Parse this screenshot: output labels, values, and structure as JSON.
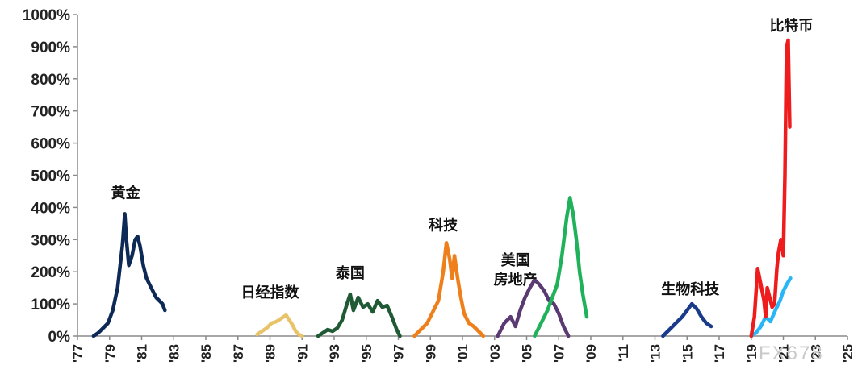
{
  "chart_data": {
    "type": "line",
    "title": "",
    "xlabel": "",
    "ylabel": "",
    "xlim": [
      1977,
      2025
    ],
    "ylim": [
      0,
      1000
    ],
    "grid": false,
    "y_ticks": [
      "0%",
      "100%",
      "200%",
      "300%",
      "400%",
      "500%",
      "600%",
      "700%",
      "800%",
      "900%",
      "1000%"
    ],
    "x_ticks": [
      "'77",
      "'79",
      "'81",
      "'83",
      "'85",
      "'87",
      "'89",
      "'91",
      "'93",
      "'95",
      "'97",
      "'99",
      "'01",
      "'03",
      "'05",
      "'07",
      "'09",
      "'11",
      "'13",
      "'15",
      "'17",
      "'19",
      "'21",
      "'23",
      "'25"
    ],
    "series": [
      {
        "name": "黄金",
        "color": "#0d2a57",
        "label_at": [
          1980.0,
          430
        ],
        "label_lines": [
          "黄金"
        ],
        "x": [
          1978.0,
          1978.3,
          1978.6,
          1978.9,
          1979.2,
          1979.5,
          1979.8,
          1979.95,
          1980.05,
          1980.2,
          1980.4,
          1980.6,
          1980.75,
          1980.9,
          1981.1,
          1981.3,
          1981.5,
          1981.7,
          1981.9,
          1982.1,
          1982.3,
          1982.45
        ],
        "y": [
          0,
          10,
          25,
          40,
          80,
          150,
          280,
          380,
          300,
          220,
          250,
          300,
          310,
          280,
          220,
          180,
          160,
          140,
          120,
          110,
          100,
          80
        ]
      },
      {
        "name": "日经指数",
        "color": "#e8c36a",
        "label_at": [
          1989.0,
          120
        ],
        "label_lines": [
          "日经指数"
        ],
        "x": [
          1988.2,
          1988.5,
          1988.8,
          1989.1,
          1989.4,
          1989.7,
          1990.0,
          1990.2,
          1990.4,
          1990.6,
          1990.8,
          1991.0
        ],
        "y": [
          5,
          15,
          25,
          40,
          45,
          55,
          65,
          50,
          35,
          15,
          5,
          0
        ]
      },
      {
        "name": "泰国",
        "color": "#1f5a35",
        "label_at": [
          1994.0,
          180
        ],
        "label_lines": [
          "泰国"
        ],
        "x": [
          1992.0,
          1992.3,
          1992.6,
          1992.9,
          1993.2,
          1993.5,
          1993.8,
          1994.0,
          1994.2,
          1994.5,
          1994.8,
          1995.1,
          1995.4,
          1995.7,
          1996.0,
          1996.3,
          1996.6,
          1996.9,
          1997.1
        ],
        "y": [
          0,
          10,
          20,
          15,
          25,
          50,
          100,
          130,
          80,
          120,
          90,
          100,
          75,
          110,
          90,
          95,
          60,
          20,
          0
        ]
      },
      {
        "name": "科技",
        "color": "#ef7f1a",
        "label_at": [
          1999.8,
          330
        ],
        "label_lines": [
          "科技"
        ],
        "x": [
          1998.0,
          1998.4,
          1998.8,
          1999.2,
          1999.5,
          1999.8,
          2000.0,
          2000.2,
          2000.35,
          2000.5,
          2000.7,
          2000.9,
          2001.1,
          2001.4,
          2001.7,
          2002.0,
          2002.3
        ],
        "y": [
          0,
          20,
          40,
          80,
          110,
          200,
          290,
          240,
          180,
          250,
          180,
          120,
          70,
          40,
          30,
          15,
          0
        ]
      },
      {
        "name": "美国房地产",
        "color": "#5b3a72",
        "label_at": [
          2004.3,
          220
        ],
        "label_lines": [
          "美国",
          "房地产"
        ],
        "x": [
          2003.2,
          2003.6,
          2004.0,
          2004.3,
          2004.6,
          2004.9,
          2005.2,
          2005.5,
          2005.8,
          2006.1,
          2006.4,
          2006.7,
          2007.0,
          2007.3,
          2007.6
        ],
        "y": [
          0,
          40,
          60,
          30,
          80,
          120,
          150,
          175,
          160,
          140,
          110,
          100,
          70,
          30,
          0
        ]
      },
      {
        "name": "",
        "color": "#1fb25a",
        "x": [
          2005.5,
          2005.9,
          2006.3,
          2006.6,
          2006.9,
          2007.2,
          2007.5,
          2007.7,
          2007.9,
          2008.1,
          2008.3,
          2008.5,
          2008.75
        ],
        "y": [
          0,
          40,
          80,
          120,
          160,
          250,
          370,
          430,
          380,
          300,
          200,
          130,
          60
        ]
      },
      {
        "name": "生物科技",
        "color": "#1a3a8a",
        "label_at": [
          2015.2,
          130
        ],
        "label_lines": [
          "生物科技"
        ],
        "x": [
          2013.5,
          2013.8,
          2014.1,
          2014.4,
          2014.7,
          2015.0,
          2015.3,
          2015.6,
          2015.9,
          2016.2,
          2016.5
        ],
        "y": [
          0,
          15,
          30,
          45,
          60,
          80,
          100,
          85,
          60,
          40,
          30
        ]
      },
      {
        "name": "",
        "color": "#29b6f6",
        "x": [
          2019.0,
          2019.3,
          2019.6,
          2019.9,
          2020.2,
          2020.5,
          2020.8,
          2021.0,
          2021.2,
          2021.45
        ],
        "y": [
          0,
          10,
          30,
          60,
          45,
          80,
          110,
          140,
          160,
          180
        ]
      },
      {
        "name": "比特币",
        "color": "#ee1c1c",
        "label_at": [
          2021.5,
          950
        ],
        "label_lines": [
          "比特币"
        ],
        "x": [
          2019.0,
          2019.2,
          2019.4,
          2019.6,
          2019.8,
          2019.9,
          2020.0,
          2020.15,
          2020.3,
          2020.45,
          2020.6,
          2020.7,
          2020.85,
          2021.0,
          2021.1,
          2021.2,
          2021.3,
          2021.4
        ],
        "y": [
          0,
          60,
          210,
          160,
          110,
          60,
          150,
          120,
          90,
          100,
          210,
          260,
          300,
          250,
          500,
          900,
          920,
          650
        ]
      }
    ]
  },
  "watermark": "FX678"
}
